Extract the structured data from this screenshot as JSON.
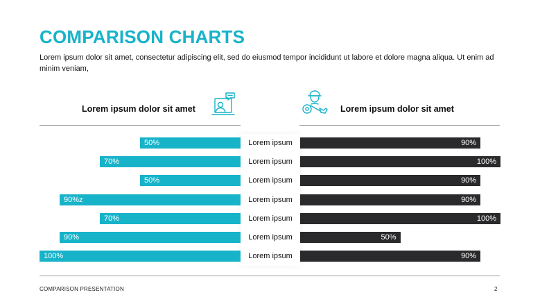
{
  "title": "COMPARISON CHARTS",
  "description": "Lorem ipsum dolor sit amet, consectetur adipiscing elit, sed do eiusmod tempor incididunt ut labore et dolore magna aliqua.  Ut enim ad minim veniam,",
  "left_heading": "Lorem ipsum dolor sit amet",
  "right_heading": "Lorem ipsum dolor sit amet",
  "icons": {
    "left": "presenter-chat-icon",
    "right": "worker-gear-icon"
  },
  "colors": {
    "accent": "#17b3c9",
    "dark": "#2a2a2c",
    "text": "#111111",
    "rule": "#9a9a9a"
  },
  "chart_data": {
    "type": "bar",
    "categories": [
      "Lorem ipsum",
      "Lorem ipsum",
      "Lorem ipsum",
      "Lorem ipsum",
      "Lorem ipsum",
      "Lorem ipsum",
      "Lorem ipsum"
    ],
    "series": [
      {
        "values": [
          50,
          70,
          50,
          90,
          70,
          90,
          100
        ],
        "labels": [
          "50%",
          "70%",
          "50%",
          "90%z",
          "70%",
          "90%",
          "100%"
        ],
        "color": "#17b3c9",
        "direction": "left"
      },
      {
        "values": [
          90,
          100,
          90,
          90,
          100,
          50,
          90
        ],
        "labels": [
          "90%",
          "100%",
          "90%",
          "90%",
          "100%",
          "50%",
          "90%"
        ],
        "color": "#2a2a2c",
        "direction": "right"
      }
    ],
    "xlim": [
      0,
      100
    ]
  },
  "footer": {
    "left": "COMPARISON PRESENTATION",
    "page_number": "2"
  }
}
